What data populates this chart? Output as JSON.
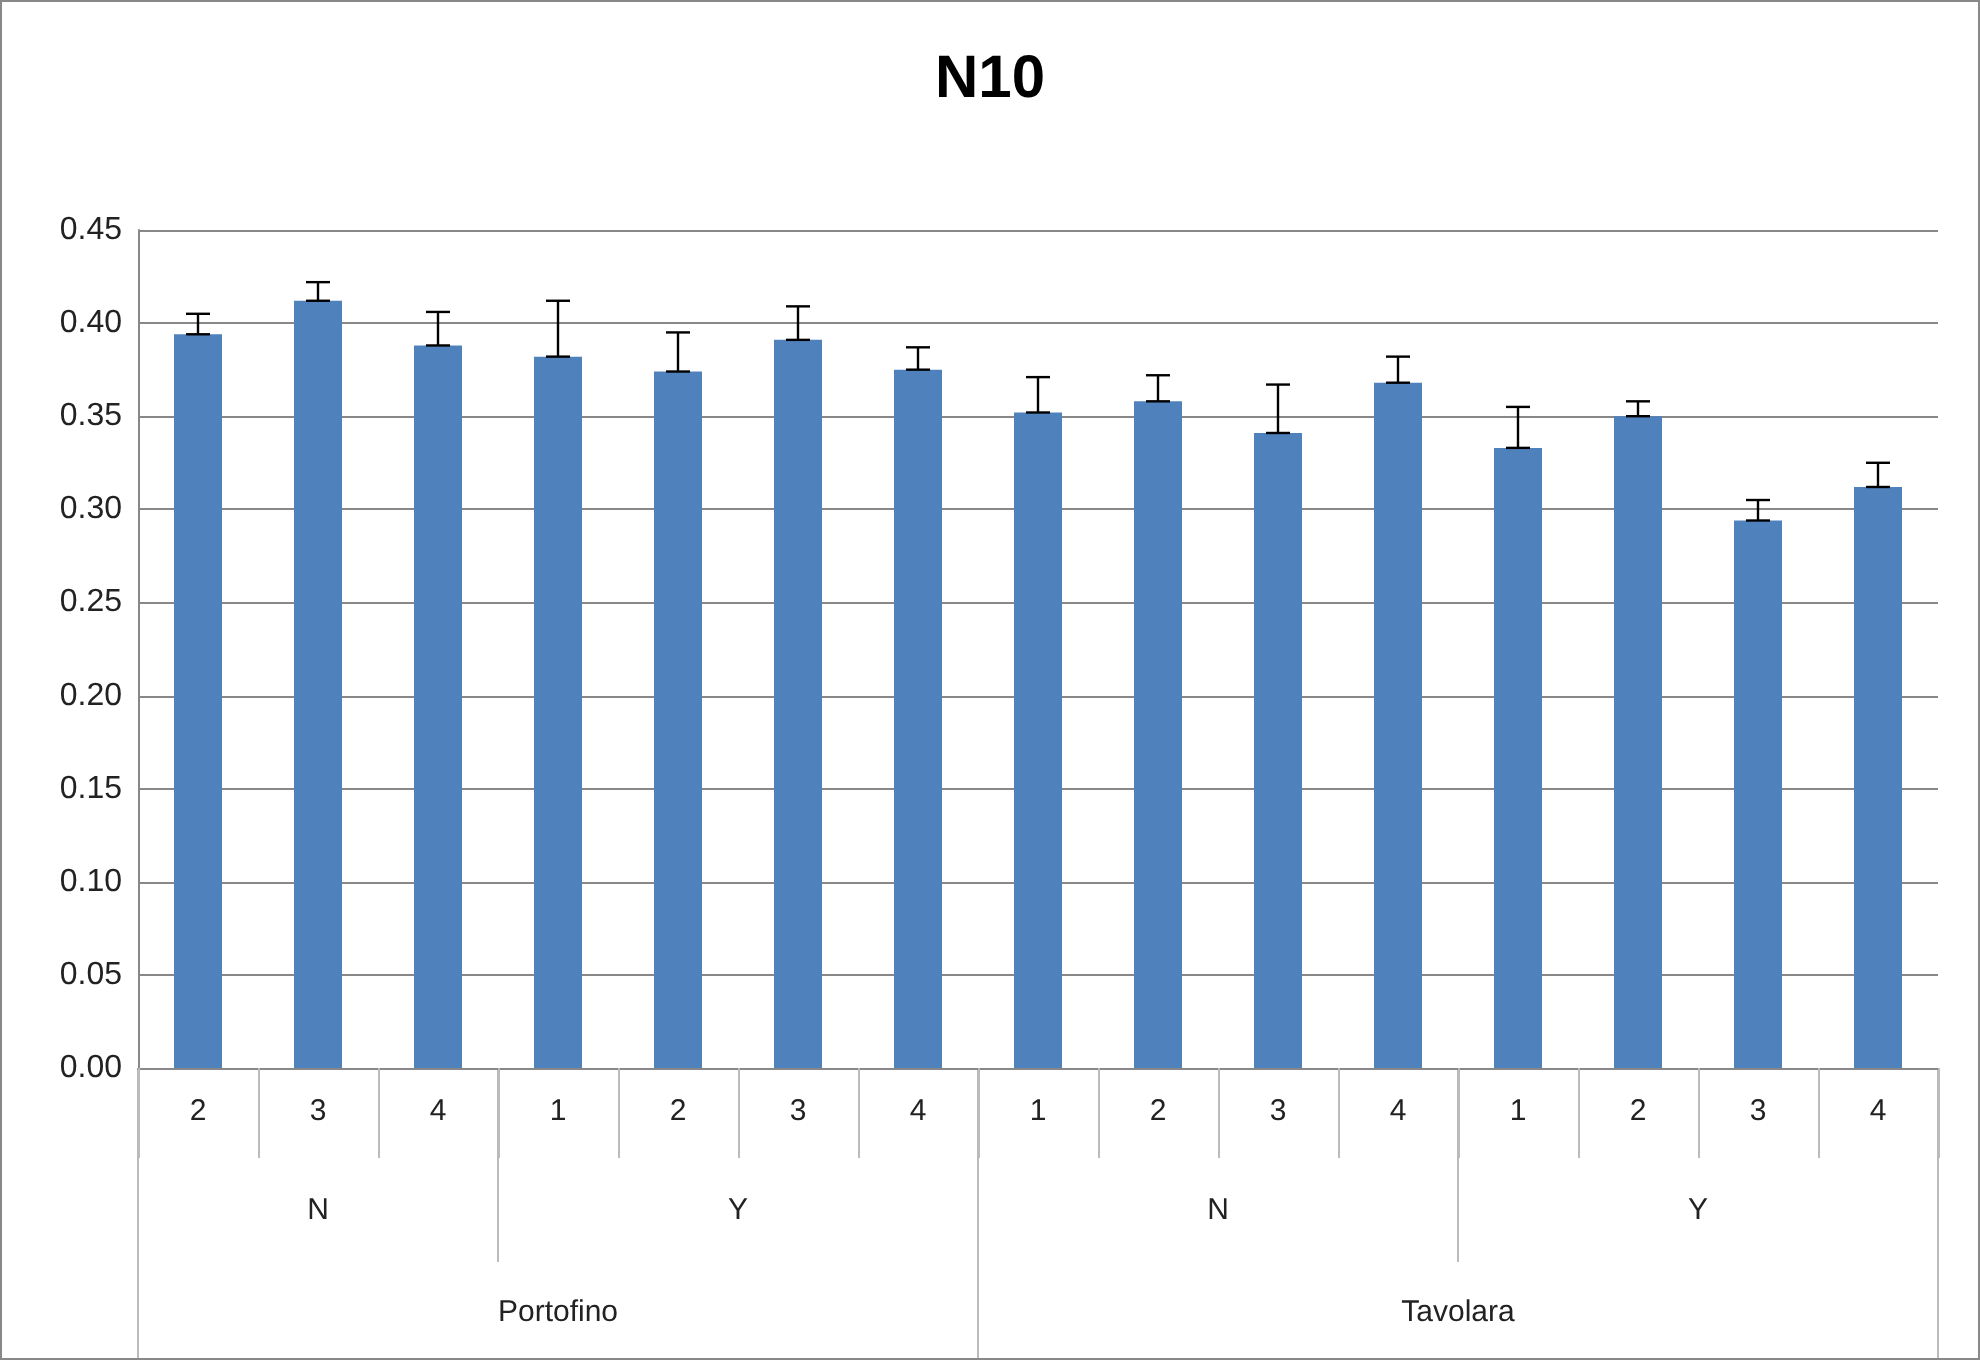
{
  "chart_data": {
    "type": "bar",
    "title": "N10",
    "categories": [
      "2",
      "3",
      "4",
      "1",
      "2",
      "3",
      "4",
      "1",
      "2",
      "3",
      "4",
      "1",
      "2",
      "3",
      "4"
    ],
    "annotations": [
      "N",
      "Y",
      "N",
      "Y",
      "Portofino",
      "Tavolara"
    ],
    "values": [
      0.394,
      0.412,
      0.388,
      0.382,
      0.374,
      0.391,
      0.375,
      0.352,
      0.358,
      0.341,
      0.368,
      0.333,
      0.35,
      0.294,
      0.312
    ],
    "errors": [
      [
        0.394,
        0.405
      ],
      [
        0.412,
        0.422
      ],
      [
        0.388,
        0.406
      ],
      [
        0.382,
        0.412
      ],
      [
        0.374,
        0.395
      ],
      [
        0.391,
        0.409
      ],
      [
        0.375,
        0.387
      ],
      [
        0.352,
        0.371
      ],
      [
        0.358,
        0.372
      ],
      [
        0.341,
        0.367
      ],
      [
        0.368,
        0.382
      ],
      [
        0.333,
        0.355
      ],
      [
        0.35,
        0.358
      ],
      [
        0.294,
        0.305
      ],
      [
        0.312,
        0.325
      ]
    ],
    "color": "#4f81bd",
    "ylim": [
      0,
      0.45
    ],
    "yticks": [
      {
        "value": 0,
        "label": "0.00"
      },
      0.05,
      {
        "value": 0.1,
        "label": "0.10"
      },
      0.15,
      {
        "value": 0.2,
        "label": "0.20"
      },
      0.25,
      {
        "value": 0.3,
        "label": "0.30"
      },
      0.35,
      {
        "value": 0.4,
        "label": "0.40"
      },
      0.45
    ],
    "grid": "y"
  }
}
